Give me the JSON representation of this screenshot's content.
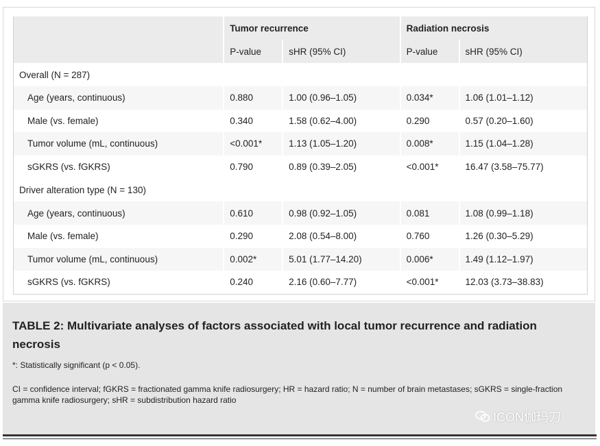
{
  "table": {
    "group_headers": [
      "",
      "Tumor recurrence",
      "Radiation necrosis"
    ],
    "sub_headers": [
      "",
      "P-value",
      "sHR (95% CI)",
      "P-value",
      "sHR (95% CI)"
    ],
    "groups": [
      {
        "label": "Overall (N = 287)",
        "rows": [
          {
            "factor": "Age (years, continuous)",
            "tr_p": "0.880",
            "tr_shr": "1.00 (0.96–1.05)",
            "rn_p": "0.034*",
            "rn_shr": "1.06 (1.01–1.12)"
          },
          {
            "factor": "Male (vs. female)",
            "tr_p": "0.340",
            "tr_shr": "1.58 (0.62–4.00)",
            "rn_p": "0.290",
            "rn_shr": "0.57 (0.20–1.60)"
          },
          {
            "factor": "Tumor volume (mL, continuous)",
            "tr_p": "<0.001*",
            "tr_shr": "1.13 (1.05–1.20)",
            "rn_p": "0.008*",
            "rn_shr": "1.15 (1.04–1.28)"
          },
          {
            "factor": "sGKRS (vs. fGKRS)",
            "tr_p": "0.790",
            "tr_shr": "0.89 (0.39–2.05)",
            "rn_p": "<0.001*",
            "rn_shr": "16.47 (3.58–75.77)"
          }
        ]
      },
      {
        "label": "Driver alteration type (N = 130)",
        "rows": [
          {
            "factor": "Age (years, continuous)",
            "tr_p": "0.610",
            "tr_shr": "0.98 (0.92–1.05)",
            "rn_p": "0.081",
            "rn_shr": "1.08 (0.99–1.18)"
          },
          {
            "factor": "Male (vs. female)",
            "tr_p": "0.290",
            "tr_shr": "2.08 (0.54–8.00)",
            "rn_p": "0.760",
            "rn_shr": "1.26 (0.30–5.29)"
          },
          {
            "factor": "Tumor volume (mL, continuous)",
            "tr_p": "0.002*",
            "tr_shr": "5.01 (1.77–14.20)",
            "rn_p": "0.006*",
            "rn_shr": "1.49 (1.12–1.97)"
          },
          {
            "factor": "sGKRS (vs. fGKRS)",
            "tr_p": "0.240",
            "tr_shr": "2.16 (0.60–7.77)",
            "rn_p": "<0.001*",
            "rn_shr": "12.03 (3.73–38.83)"
          }
        ]
      }
    ]
  },
  "caption": {
    "title": "TABLE 2: Multivariate analyses of factors associated with local tumor recurrence and radiation necrosis",
    "note": "*: Statistically significant (p < 0.05).",
    "abbreviations": "CI = confidence interval; fGKRS = fractionated gamma knife radiosurgery; HR = hazard ratio; N = number of brain metastases; sGKRS = single-fraction gamma knife radiosurgery; sHR = subdistribution hazard ratio"
  },
  "watermark": {
    "text": "ICON伽玛刀",
    "icon": "wechat-icon"
  },
  "colors": {
    "header_bg": "#ebebeb",
    "stripe_bg": "#f6f6f6",
    "caption_bg": "#e5e5e5"
  }
}
